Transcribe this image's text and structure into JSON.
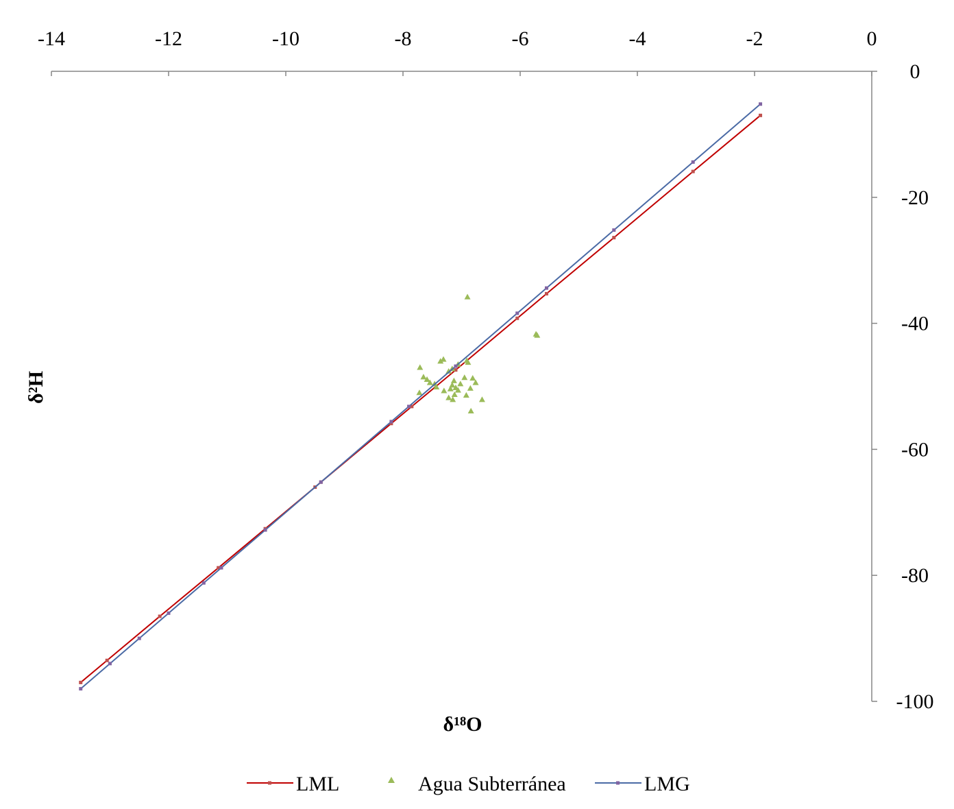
{
  "chart_data": {
    "type": "scatter",
    "x_label": "δ¹⁸O",
    "y_label": "δ²H",
    "xlim": [
      -14,
      0
    ],
    "xticks": [
      -14,
      -12,
      -10,
      -8,
      -6,
      -4,
      -2,
      0
    ],
    "ylim": [
      -100,
      0
    ],
    "yticks": [
      0,
      -20,
      -40,
      -60,
      -80,
      -100
    ],
    "x_axis_position": "top",
    "y_axis_position": "right",
    "series": [
      {
        "name": "LML",
        "type": "line",
        "color": "#c00000",
        "marker_color": "#c0504d",
        "x": [
          -13.5,
          -13.05,
          -12.15,
          -11.15,
          -10.35,
          -9.5,
          -9.4,
          -8.2,
          -7.85,
          -7.1,
          -6.05,
          -5.55,
          -4.4,
          -3.05,
          -1.9
        ],
        "values": [
          -97.0,
          -93.5,
          -86.5,
          -78.8,
          -72.6,
          -66.0,
          -65.2,
          -55.9,
          -53.2,
          -47.4,
          -39.2,
          -35.3,
          -26.4,
          -15.9,
          -7.0
        ]
      },
      {
        "name": "Agua Subterránea",
        "type": "scatter",
        "color": "#9bbb59",
        "x": [
          -6.9,
          -5.73,
          -5.71,
          -7.31,
          -7.36,
          -6.91,
          -6.89,
          -7.06,
          -7.71,
          -7.22,
          -7.16,
          -7.65,
          -7.59,
          -6.81,
          -6.95,
          -7.13,
          -7.54,
          -7.46,
          -7.43,
          -7.02,
          -6.76,
          -7.16,
          -7.1,
          -6.85,
          -7.19,
          -7.3,
          -7.06,
          -7.72,
          -7.12,
          -6.92,
          -7.22,
          -7.15,
          -6.65,
          -6.84
        ],
        "values": [
          -35.8,
          -41.7,
          -41.9,
          -45.7,
          -46.0,
          -45.9,
          -46.2,
          -46.5,
          -47.0,
          -47.6,
          -47.2,
          -48.5,
          -48.9,
          -48.7,
          -48.6,
          -49.1,
          -49.4,
          -49.6,
          -50.1,
          -49.6,
          -49.4,
          -49.8,
          -50.2,
          -50.3,
          -50.4,
          -50.7,
          -50.6,
          -51.0,
          -51.3,
          -51.4,
          -51.8,
          -52.1,
          -52.1,
          -53.9
        ]
      },
      {
        "name": "LMG",
        "type": "line",
        "color": "#4a6aa5",
        "marker_color": "#8064a2",
        "x": [
          -13.5,
          -13.0,
          -12.5,
          -12.0,
          -11.4,
          -11.1,
          -10.35,
          -9.4,
          -8.2,
          -7.9,
          -7.1,
          -6.05,
          -5.55,
          -4.4,
          -3.05,
          -1.9
        ],
        "values": [
          -98.0,
          -94.0,
          -90.0,
          -86.0,
          -81.2,
          -78.8,
          -72.8,
          -65.2,
          -55.6,
          -53.2,
          -46.8,
          -38.4,
          -34.4,
          -25.2,
          -14.4,
          -5.2
        ]
      }
    ]
  }
}
